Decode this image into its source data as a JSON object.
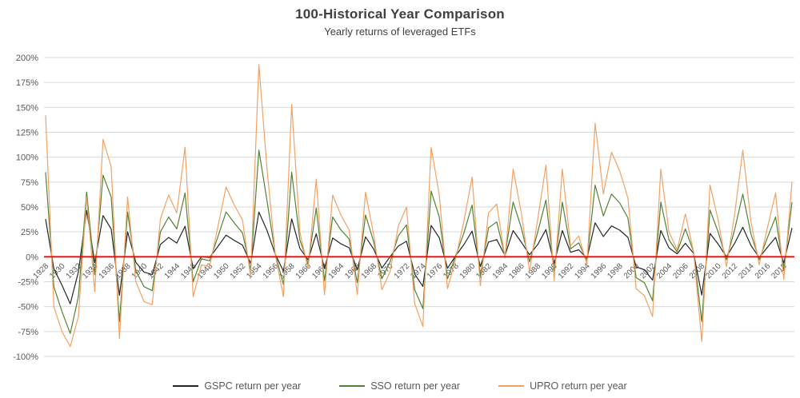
{
  "chart_data": {
    "type": "line",
    "title": "100-Historical Year Comparison",
    "subtitle": "Yearly returns of leveraged ETFs",
    "xlabel": "",
    "ylabel": "",
    "start_year": 1928,
    "end_year": 2019,
    "ylim": [
      -100,
      200
    ],
    "grid": true,
    "grid_color": "#D9D9D9",
    "axis_text_color": "#595959",
    "zero_line_color": "#FF0000",
    "legend_position": "bottom",
    "y_ticks": [
      {
        "v": 200,
        "label": "200%"
      },
      {
        "v": 175,
        "label": "175%"
      },
      {
        "v": 150,
        "label": "150%"
      },
      {
        "v": 125,
        "label": "125%"
      },
      {
        "v": 100,
        "label": "100%"
      },
      {
        "v": 75,
        "label": "75%"
      },
      {
        "v": 50,
        "label": "50%"
      },
      {
        "v": 25,
        "label": "25%"
      },
      {
        "v": 0,
        "label": "0%"
      },
      {
        "v": -25,
        "label": "-25%"
      },
      {
        "v": -50,
        "label": "-50%"
      },
      {
        "v": -75,
        "label": "-75%"
      },
      {
        "v": -100,
        "label": "-100%"
      }
    ],
    "x_tick_labels": [
      "1928",
      "1930",
      "1932",
      "1934",
      "1936",
      "1938",
      "1940",
      "1942",
      "1944",
      "1946",
      "1948",
      "1950",
      "1952",
      "1954",
      "1956",
      "1958",
      "1960",
      "1962",
      "1964",
      "1966",
      "1968",
      "1970",
      "1972",
      "1974",
      "1976",
      "1978",
      "1980",
      "1982",
      "1984",
      "1986",
      "1988",
      "1990",
      "1992",
      "1994",
      "1996",
      "1998",
      "2000",
      "2002",
      "2004",
      "2006",
      "2008",
      "2010",
      "2012",
      "2014",
      "2016",
      "2018"
    ],
    "series": [
      {
        "key": "gspc",
        "name": "GSPC return per year",
        "color": "#262626",
        "values": [
          37.9,
          -11.9,
          -28.5,
          -47.1,
          -15.1,
          46.6,
          -5.9,
          41.4,
          27.9,
          -38.6,
          25.1,
          -5.5,
          -15.3,
          -17.9,
          12.4,
          19.4,
          13.8,
          30.7,
          -11.9,
          0,
          -0.7,
          10.3,
          21.8,
          16.5,
          11.8,
          -6.6,
          45,
          26.4,
          2.6,
          -14.3,
          38.1,
          8.5,
          -3,
          23.1,
          -11.8,
          18.9,
          13,
          9.1,
          -13.1,
          20.1,
          7.7,
          -11.4,
          0.1,
          10.8,
          15.6,
          -17.4,
          -29.7,
          31.5,
          19.1,
          -11.5,
          1.1,
          12.3,
          25.8,
          -9.7,
          14.8,
          17.3,
          1.4,
          26.3,
          14.6,
          2,
          12.4,
          27.3,
          -6.6,
          26.3,
          4.5,
          7.1,
          -1.5,
          34.1,
          20.3,
          31,
          26.7,
          19.5,
          -10.1,
          -13,
          -23.4,
          26.4,
          9,
          3,
          13.6,
          3.5,
          -38.5,
          23.5,
          12.8,
          0,
          13.4,
          29.6,
          11.4,
          -0.7,
          9.5,
          19.4,
          -6.2,
          28.9
        ]
      },
      {
        "key": "sso",
        "name": "SSO return per year",
        "color": "#548235",
        "values": [
          85,
          -30,
          -55,
          -77,
          -40,
          65,
          -18,
          82,
          60,
          -65,
          45,
          -14,
          -30,
          -34,
          25,
          40,
          28,
          64,
          -25,
          -2,
          -4,
          20,
          45,
          34,
          24,
          -13,
          107,
          56,
          3,
          -28,
          85,
          17,
          -7,
          49,
          -24,
          40,
          27,
          18,
          -26,
          42,
          15,
          -22,
          -5,
          21,
          32,
          -33,
          -52,
          66,
          40,
          -22,
          1,
          24,
          52,
          -19,
          29,
          35,
          1,
          55,
          29,
          -5,
          25,
          57,
          -15,
          55,
          8,
          14,
          -4,
          72,
          41,
          63,
          54,
          39,
          -21,
          -26,
          -44,
          55,
          17,
          5,
          28,
          5,
          -65,
          47,
          25,
          -3,
          27,
          63,
          23,
          -3,
          19,
          40,
          -14,
          55
        ]
      },
      {
        "key": "upro",
        "name": "UPRO return per year",
        "color": "#F2A264",
        "values": [
          142,
          -50,
          -75,
          -90,
          -60,
          60,
          -35,
          118,
          90,
          -82,
          60,
          -25,
          -45,
          -48,
          38,
          62,
          44,
          110,
          -40,
          -8,
          -10,
          30,
          70,
          52,
          37,
          -20,
          193,
          88,
          2,
          -40,
          153,
          25,
          -12,
          78,
          -38,
          62,
          42,
          27,
          -38,
          65,
          22,
          -33,
          -15,
          31,
          50,
          -47,
          -70,
          110,
          62,
          -32,
          -2,
          36,
          80,
          -29,
          44,
          53,
          -1,
          88,
          44,
          -15,
          38,
          92,
          -24,
          88,
          11,
          21,
          -8,
          134,
          63,
          105,
          86,
          59,
          -32,
          -39,
          -60,
          88,
          25,
          7,
          43,
          5,
          -85,
          72,
          37,
          -10,
          42,
          107,
          35,
          -8,
          29,
          64,
          -23,
          75
        ]
      }
    ]
  }
}
